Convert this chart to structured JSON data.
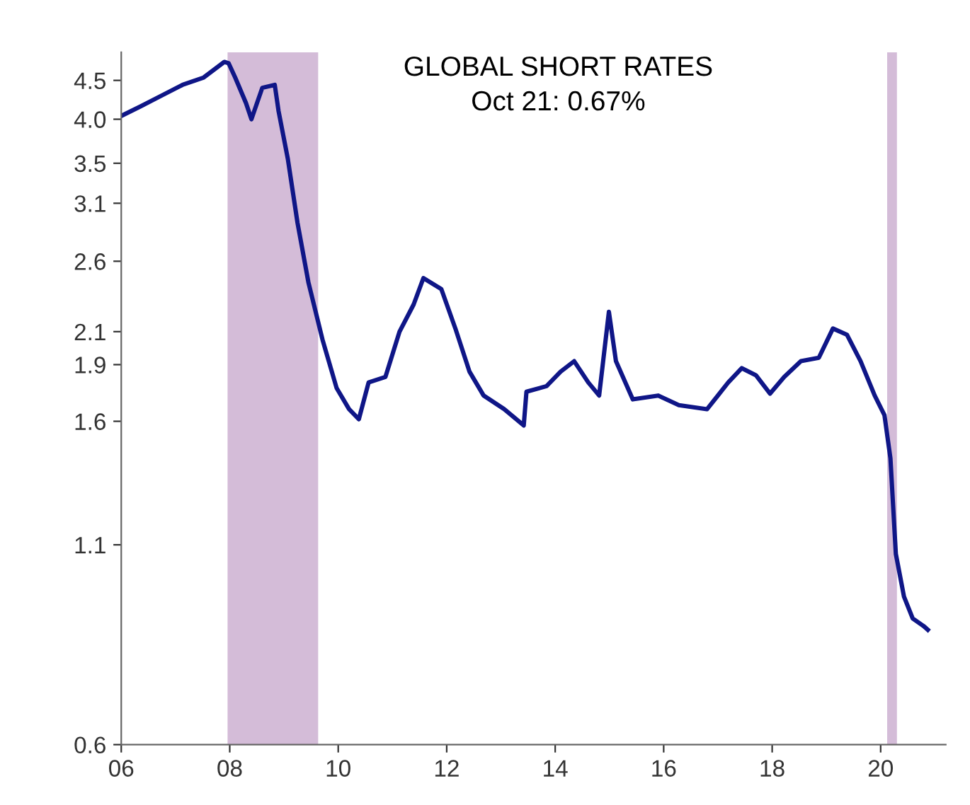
{
  "chart_data": {
    "type": "line",
    "title": "GLOBAL SHORT RATES",
    "subtitle": "Oct 21: 0.67%",
    "log": "y",
    "ylim": [
      0.6,
      4.9
    ],
    "yticks": [
      0.6,
      1.1,
      1.6,
      1.9,
      2.1,
      2.6,
      3.1,
      3.5,
      {
        "value": 4.0,
        "label": "4.0"
      },
      4.5
    ],
    "xlim": [
      2006,
      2021.2
    ],
    "xticks": [
      {
        "value": 2006,
        "label": "06"
      },
      {
        "value": 2008,
        "label": "08"
      },
      {
        "value": 2010,
        "label": "10"
      },
      {
        "value": 2012,
        "label": "12"
      },
      {
        "value": 2014,
        "label": "14"
      },
      {
        "value": 2016,
        "label": "16"
      },
      {
        "value": 2018,
        "label": "18"
      },
      {
        "value": 2020,
        "label": "20"
      }
    ],
    "grid": false,
    "legend": false,
    "bands": [
      {
        "axis": "x",
        "from": 2007.96,
        "to": 2009.63,
        "color": "#d4bcd8"
      },
      {
        "axis": "x",
        "from": 2020.12,
        "to": 2020.3,
        "color": "#d4bcd8"
      }
    ],
    "series": [
      {
        "color": "#0f1687",
        "x": [
          2006.0,
          2006.36,
          2006.75,
          2007.13,
          2007.52,
          2007.9,
          2007.98,
          2008.1,
          2008.3,
          2008.4,
          2008.6,
          2008.83,
          2008.9,
          2009.07,
          2009.25,
          2009.45,
          2009.71,
          2009.97,
          2010.2,
          2010.38,
          2010.56,
          2010.87,
          2011.13,
          2011.39,
          2011.57,
          2011.9,
          2012.16,
          2012.42,
          2012.68,
          2013.06,
          2013.42,
          2013.47,
          2013.84,
          2014.1,
          2014.35,
          2014.61,
          2014.81,
          2014.99,
          2015.12,
          2015.43,
          2015.9,
          2016.28,
          2016.8,
          2017.19,
          2017.44,
          2017.7,
          2017.96,
          2018.22,
          2018.53,
          2018.86,
          2019.12,
          2019.38,
          2019.63,
          2019.89,
          2020.07,
          2020.18,
          2020.28,
          2020.43,
          2020.59,
          2020.79,
          2020.87
        ],
        "values": [
          4.04,
          4.16,
          4.3,
          4.44,
          4.54,
          4.76,
          4.74,
          4.54,
          4.2,
          4.0,
          4.4,
          4.44,
          4.1,
          3.55,
          2.92,
          2.44,
          2.05,
          1.77,
          1.66,
          1.61,
          1.8,
          1.83,
          2.1,
          2.28,
          2.47,
          2.39,
          2.12,
          1.86,
          1.73,
          1.66,
          1.58,
          1.75,
          1.78,
          1.86,
          1.92,
          1.8,
          1.73,
          2.23,
          1.92,
          1.71,
          1.73,
          1.68,
          1.66,
          1.8,
          1.88,
          1.84,
          1.74,
          1.83,
          1.92,
          1.94,
          2.12,
          2.08,
          1.92,
          1.73,
          1.63,
          1.43,
          1.07,
          0.94,
          0.88,
          0.86,
          0.85
        ]
      }
    ]
  }
}
